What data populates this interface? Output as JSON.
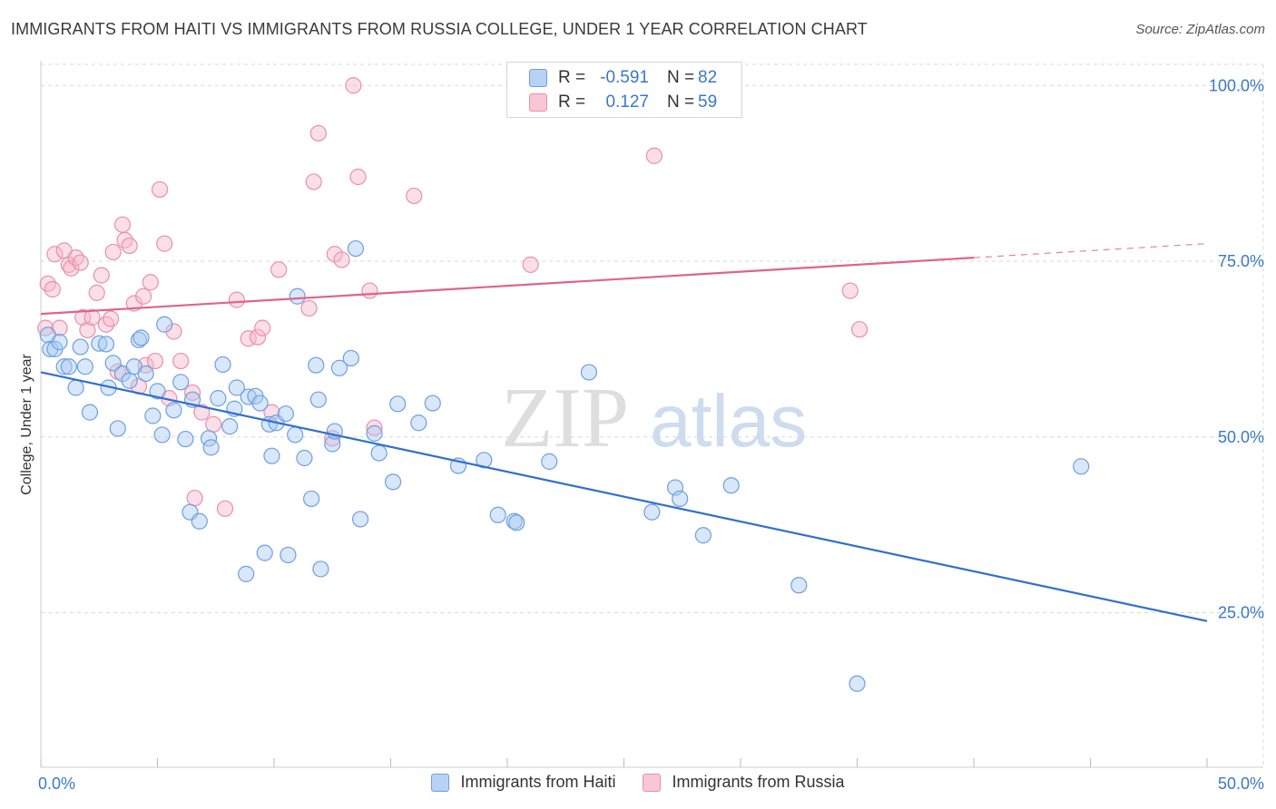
{
  "title": "IMMIGRANTS FROM HAITI VS IMMIGRANTS FROM RUSSIA COLLEGE, UNDER 1 YEAR CORRELATION CHART",
  "source": "Source: ZipAtlas.com",
  "watermark": {
    "zip": "ZIP",
    "atlas": "atlas"
  },
  "colors": {
    "haiti_fill": "#a9c9f2",
    "haiti_stroke": "#6d9fe0",
    "haiti_line": "#2f6fd1",
    "russia_fill": "#f7b9cc",
    "russia_stroke": "#ea8fab",
    "russia_line": "#e0628a",
    "grid": "#d9d9d9",
    "axis_text": "#3b78c8"
  },
  "legend_top": [
    {
      "r_label": "R =",
      "r_value": "-0.591",
      "n_label": "N =",
      "n_value": "82"
    },
    {
      "r_label": "R =",
      "r_value": "0.127",
      "n_label": "N =",
      "n_value": "59"
    }
  ],
  "chart_data": {
    "type": "scatter",
    "title": "IMMIGRANTS FROM HAITI VS IMMIGRANTS FROM RUSSIA COLLEGE, UNDER 1 YEAR CORRELATION CHART",
    "xlabel": "",
    "ylabel": "College, Under 1 year",
    "xlim": [
      0,
      50
    ],
    "ylim": [
      3,
      103
    ],
    "x_tick_labels": [
      "0.0%",
      "50.0%"
    ],
    "y_ticks": [
      25,
      50,
      75,
      100
    ],
    "y_tick_labels": [
      "25.0%",
      "50.0%",
      "75.0%",
      "100.0%"
    ],
    "grid": "horizontal dashed",
    "legend": "top-center and bottom",
    "series": [
      {
        "name": "Immigrants from Haiti",
        "trend": {
          "x": [
            0,
            50
          ],
          "y": [
            59.2,
            23.8
          ],
          "dashed_from": null
        },
        "points": [
          [
            0.3,
            64.5
          ],
          [
            0.4,
            62.5
          ],
          [
            0.6,
            62.5
          ],
          [
            0.8,
            63.5
          ],
          [
            1.0,
            60.0
          ],
          [
            1.2,
            60.0
          ],
          [
            1.5,
            57.0
          ],
          [
            1.7,
            62.8
          ],
          [
            1.9,
            60.0
          ],
          [
            2.1,
            53.5
          ],
          [
            2.5,
            63.3
          ],
          [
            2.8,
            63.2
          ],
          [
            2.9,
            57.0
          ],
          [
            3.1,
            60.5
          ],
          [
            3.3,
            51.2
          ],
          [
            3.5,
            59.0
          ],
          [
            3.8,
            58.0
          ],
          [
            4.0,
            60.0
          ],
          [
            4.2,
            63.8
          ],
          [
            4.3,
            64.1
          ],
          [
            4.5,
            59.0
          ],
          [
            4.8,
            53.0
          ],
          [
            5.0,
            56.5
          ],
          [
            5.2,
            50.3
          ],
          [
            5.3,
            66.0
          ],
          [
            5.7,
            53.8
          ],
          [
            6.0,
            57.8
          ],
          [
            6.2,
            49.7
          ],
          [
            6.5,
            55.3
          ],
          [
            6.4,
            39.3
          ],
          [
            6.8,
            38.0
          ],
          [
            7.2,
            49.8
          ],
          [
            7.3,
            48.5
          ],
          [
            7.6,
            55.5
          ],
          [
            7.8,
            60.3
          ],
          [
            8.1,
            51.5
          ],
          [
            8.3,
            54.0
          ],
          [
            8.4,
            57.0
          ],
          [
            8.8,
            30.5
          ],
          [
            8.9,
            55.7
          ],
          [
            9.2,
            55.8
          ],
          [
            9.4,
            54.8
          ],
          [
            9.6,
            33.5
          ],
          [
            9.8,
            51.8
          ],
          [
            9.9,
            47.3
          ],
          [
            10.1,
            52.0
          ],
          [
            10.5,
            53.3
          ],
          [
            10.6,
            33.2
          ],
          [
            10.9,
            50.3
          ],
          [
            11.0,
            70.0
          ],
          [
            11.3,
            47.0
          ],
          [
            11.6,
            41.2
          ],
          [
            11.8,
            60.2
          ],
          [
            11.9,
            55.3
          ],
          [
            12.0,
            31.2
          ],
          [
            12.5,
            49.0
          ],
          [
            12.6,
            50.8
          ],
          [
            12.8,
            59.8
          ],
          [
            13.3,
            61.2
          ],
          [
            13.5,
            76.8
          ],
          [
            13.7,
            38.3
          ],
          [
            14.3,
            50.5
          ],
          [
            14.5,
            47.7
          ],
          [
            15.1,
            43.6
          ],
          [
            15.3,
            54.7
          ],
          [
            16.2,
            52.0
          ],
          [
            16.8,
            54.8
          ],
          [
            17.9,
            45.9
          ],
          [
            19.0,
            46.7
          ],
          [
            19.6,
            38.9
          ],
          [
            20.3,
            38.0
          ],
          [
            20.4,
            37.8
          ],
          [
            21.8,
            46.5
          ],
          [
            23.5,
            59.2
          ],
          [
            26.2,
            39.3
          ],
          [
            27.2,
            42.8
          ],
          [
            27.4,
            41.2
          ],
          [
            28.4,
            36.0
          ],
          [
            29.6,
            43.1
          ],
          [
            32.5,
            28.9
          ],
          [
            35.0,
            14.9
          ],
          [
            44.6,
            45.8
          ]
        ]
      },
      {
        "name": "Immigrants from Russia",
        "trend": {
          "x": [
            0,
            50
          ],
          "y": [
            67.5,
            77.5
          ],
          "dashed_from": 40
        },
        "points": [
          [
            0.2,
            65.5
          ],
          [
            0.3,
            71.8
          ],
          [
            0.5,
            71.0
          ],
          [
            0.6,
            76.0
          ],
          [
            0.8,
            65.5
          ],
          [
            1.0,
            76.5
          ],
          [
            1.2,
            74.5
          ],
          [
            1.3,
            74.0
          ],
          [
            1.5,
            75.5
          ],
          [
            1.7,
            74.8
          ],
          [
            1.8,
            67.0
          ],
          [
            2.0,
            65.2
          ],
          [
            2.2,
            67.0
          ],
          [
            2.4,
            70.5
          ],
          [
            2.6,
            73.0
          ],
          [
            2.8,
            66.0
          ],
          [
            3.0,
            66.8
          ],
          [
            3.1,
            76.3
          ],
          [
            3.3,
            59.3
          ],
          [
            3.5,
            80.2
          ],
          [
            3.6,
            78.0
          ],
          [
            3.8,
            77.2
          ],
          [
            4.0,
            69.0
          ],
          [
            4.2,
            57.2
          ],
          [
            4.4,
            70.0
          ],
          [
            4.5,
            60.2
          ],
          [
            4.7,
            72.0
          ],
          [
            4.9,
            60.8
          ],
          [
            5.1,
            85.2
          ],
          [
            5.3,
            77.5
          ],
          [
            5.5,
            55.5
          ],
          [
            5.7,
            65.0
          ],
          [
            6.0,
            60.8
          ],
          [
            6.5,
            56.3
          ],
          [
            6.6,
            41.3
          ],
          [
            6.9,
            53.5
          ],
          [
            7.4,
            51.8
          ],
          [
            7.9,
            39.8
          ],
          [
            8.4,
            69.5
          ],
          [
            8.9,
            64.0
          ],
          [
            9.3,
            64.2
          ],
          [
            9.5,
            65.5
          ],
          [
            9.9,
            53.5
          ],
          [
            10.2,
            73.8
          ],
          [
            11.5,
            68.3
          ],
          [
            11.7,
            86.3
          ],
          [
            11.9,
            93.2
          ],
          [
            12.5,
            49.8
          ],
          [
            12.6,
            76.0
          ],
          [
            12.9,
            75.2
          ],
          [
            13.4,
            100.0
          ],
          [
            13.6,
            87.0
          ],
          [
            14.1,
            70.8
          ],
          [
            14.3,
            51.3
          ],
          [
            16.0,
            84.3
          ],
          [
            21.0,
            74.5
          ],
          [
            26.3,
            90.0
          ],
          [
            34.7,
            70.8
          ],
          [
            35.1,
            65.3
          ]
        ]
      }
    ]
  }
}
